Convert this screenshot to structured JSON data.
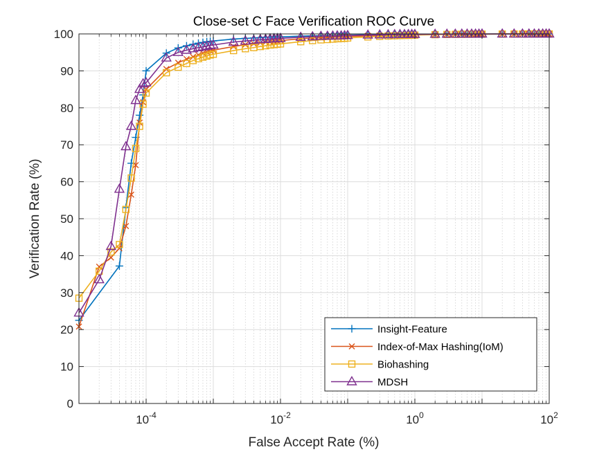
{
  "chart_data": {
    "type": "line",
    "title": "Close-set C Face Verification ROC Curve",
    "xlabel": "False Accept Rate (%)",
    "ylabel": "Verification Rate (%)",
    "xscale": "log",
    "xlim": [
      1e-05,
      100
    ],
    "ylim": [
      0,
      100
    ],
    "grid": true,
    "minor_grid": true,
    "legend_position": "bottom-right",
    "x_ticks": [
      {
        "value": 0.0001,
        "base": "10",
        "exp": "-4"
      },
      {
        "value": 0.01,
        "base": "10",
        "exp": "-2"
      },
      {
        "value": 1,
        "base": "10",
        "exp": "0"
      },
      {
        "value": 100,
        "base": "10",
        "exp": "2"
      }
    ],
    "y_ticks": [
      0,
      10,
      20,
      30,
      40,
      50,
      60,
      70,
      80,
      90,
      100
    ],
    "series": [
      {
        "name": "Insight-Feature",
        "color": "#0072BD",
        "marker": "plus",
        "points": [
          [
            1e-05,
            22.5
          ],
          [
            4e-05,
            37.2
          ],
          [
            5e-05,
            53
          ],
          [
            6e-05,
            65
          ],
          [
            7e-05,
            72
          ],
          [
            8e-05,
            78
          ],
          [
            9e-05,
            83.5
          ],
          [
            0.0001,
            90
          ],
          [
            0.0002,
            94.8
          ],
          [
            0.0003,
            96.2
          ],
          [
            0.0004,
            96.8
          ],
          [
            0.0005,
            97.2
          ],
          [
            0.0006,
            97.5
          ],
          [
            0.0007,
            97.7
          ],
          [
            0.0008,
            97.9
          ],
          [
            0.0009,
            98
          ],
          [
            0.001,
            98.1
          ],
          [
            0.002,
            98.6
          ],
          [
            0.003,
            98.8
          ],
          [
            0.004,
            98.9
          ],
          [
            0.005,
            99
          ],
          [
            0.006,
            99.1
          ],
          [
            0.007,
            99.1
          ],
          [
            0.008,
            99.2
          ],
          [
            0.009,
            99.2
          ],
          [
            0.01,
            99.2
          ],
          [
            0.02,
            99.4
          ],
          [
            0.03,
            99.5
          ],
          [
            0.04,
            99.5
          ],
          [
            0.05,
            99.6
          ],
          [
            0.06,
            99.6
          ],
          [
            0.07,
            99.6
          ],
          [
            0.08,
            99.7
          ],
          [
            0.09,
            99.7
          ],
          [
            0.1,
            99.7
          ],
          [
            0.2,
            99.8
          ],
          [
            0.3,
            99.8
          ],
          [
            0.4,
            99.8
          ],
          [
            0.5,
            99.8
          ],
          [
            0.6,
            99.85
          ],
          [
            0.7,
            99.85
          ],
          [
            0.8,
            99.85
          ],
          [
            0.9,
            99.9
          ],
          [
            1,
            99.9
          ],
          [
            2,
            99.9
          ],
          [
            3,
            99.9
          ],
          [
            4,
            99.95
          ],
          [
            5,
            99.95
          ],
          [
            6,
            99.95
          ],
          [
            7,
            99.95
          ],
          [
            8,
            99.95
          ],
          [
            9,
            99.95
          ],
          [
            10,
            99.95
          ],
          [
            20,
            100
          ],
          [
            30,
            100
          ],
          [
            40,
            100
          ],
          [
            50,
            100
          ],
          [
            60,
            100
          ],
          [
            70,
            100
          ],
          [
            80,
            100
          ],
          [
            90,
            100
          ],
          [
            100,
            100
          ]
        ]
      },
      {
        "name": "Index-of-Max Hashing(IoM)",
        "color": "#D95319",
        "marker": "x",
        "points": [
          [
            1e-05,
            20.8
          ],
          [
            2e-05,
            37
          ],
          [
            3e-05,
            39.5
          ],
          [
            4e-05,
            42
          ],
          [
            5e-05,
            48
          ],
          [
            6e-05,
            56.5
          ],
          [
            7e-05,
            64.5
          ],
          [
            8e-05,
            76
          ],
          [
            9e-05,
            81.5
          ],
          [
            0.0001,
            85
          ],
          [
            0.0002,
            90.5
          ],
          [
            0.0003,
            92.2
          ],
          [
            0.0004,
            93.2
          ],
          [
            0.0005,
            93.8
          ],
          [
            0.0006,
            94.3
          ],
          [
            0.0007,
            94.8
          ],
          [
            0.0008,
            95.1
          ],
          [
            0.0009,
            95.4
          ],
          [
            0.001,
            95.6
          ],
          [
            0.002,
            96.6
          ],
          [
            0.003,
            97.1
          ],
          [
            0.004,
            97.4
          ],
          [
            0.005,
            97.6
          ],
          [
            0.006,
            97.8
          ],
          [
            0.007,
            97.9
          ],
          [
            0.008,
            98
          ],
          [
            0.009,
            98.1
          ],
          [
            0.01,
            98.2
          ],
          [
            0.02,
            98.7
          ],
          [
            0.03,
            98.9
          ],
          [
            0.04,
            99
          ],
          [
            0.05,
            99.1
          ],
          [
            0.06,
            99.15
          ],
          [
            0.07,
            99.2
          ],
          [
            0.08,
            99.25
          ],
          [
            0.09,
            99.3
          ],
          [
            0.1,
            99.3
          ],
          [
            0.2,
            99.5
          ],
          [
            0.3,
            99.55
          ],
          [
            0.4,
            99.6
          ],
          [
            0.5,
            99.65
          ],
          [
            0.6,
            99.7
          ],
          [
            0.7,
            99.7
          ],
          [
            0.8,
            99.72
          ],
          [
            0.9,
            99.75
          ],
          [
            1,
            99.75
          ],
          [
            2,
            99.85
          ],
          [
            3,
            99.88
          ],
          [
            4,
            99.9
          ],
          [
            5,
            99.9
          ],
          [
            6,
            99.92
          ],
          [
            7,
            99.92
          ],
          [
            8,
            99.93
          ],
          [
            9,
            99.93
          ],
          [
            10,
            99.94
          ],
          [
            20,
            99.97
          ],
          [
            30,
            99.98
          ],
          [
            40,
            99.98
          ],
          [
            50,
            99.99
          ],
          [
            60,
            99.99
          ],
          [
            70,
            99.99
          ],
          [
            80,
            100
          ],
          [
            90,
            100
          ],
          [
            100,
            100
          ]
        ]
      },
      {
        "name": "Biohashing",
        "color": "#EDB120",
        "marker": "square",
        "points": [
          [
            1e-05,
            28.5
          ],
          [
            2e-05,
            35.8
          ],
          [
            3e-05,
            41
          ],
          [
            4e-05,
            43
          ],
          [
            5e-05,
            52.5
          ],
          [
            6e-05,
            61
          ],
          [
            7e-05,
            69
          ],
          [
            8e-05,
            75
          ],
          [
            9e-05,
            81
          ],
          [
            0.0001,
            84
          ],
          [
            0.0002,
            89.5
          ],
          [
            0.0003,
            91
          ],
          [
            0.0004,
            92
          ],
          [
            0.0005,
            92.8
          ],
          [
            0.0006,
            93.3
          ],
          [
            0.0007,
            93.7
          ],
          [
            0.0008,
            94
          ],
          [
            0.0009,
            94.3
          ],
          [
            0.001,
            94.5
          ],
          [
            0.002,
            95.5
          ],
          [
            0.003,
            96
          ],
          [
            0.004,
            96.3
          ],
          [
            0.005,
            96.6
          ],
          [
            0.006,
            96.8
          ],
          [
            0.007,
            97
          ],
          [
            0.008,
            97.1
          ],
          [
            0.009,
            97.2
          ],
          [
            0.01,
            97.3
          ],
          [
            0.02,
            97.9
          ],
          [
            0.03,
            98.2
          ],
          [
            0.04,
            98.4
          ],
          [
            0.05,
            98.5
          ],
          [
            0.06,
            98.6
          ],
          [
            0.07,
            98.7
          ],
          [
            0.08,
            98.75
          ],
          [
            0.09,
            98.8
          ],
          [
            0.1,
            98.9
          ],
          [
            0.2,
            99.2
          ],
          [
            0.3,
            99.35
          ],
          [
            0.4,
            99.45
          ],
          [
            0.5,
            99.5
          ],
          [
            0.6,
            99.55
          ],
          [
            0.7,
            99.6
          ],
          [
            0.8,
            99.62
          ],
          [
            0.9,
            99.65
          ],
          [
            1,
            99.68
          ],
          [
            2,
            99.8
          ],
          [
            3,
            99.85
          ],
          [
            4,
            99.88
          ],
          [
            5,
            99.9
          ],
          [
            6,
            99.91
          ],
          [
            7,
            99.92
          ],
          [
            8,
            99.93
          ],
          [
            9,
            99.93
          ],
          [
            10,
            99.94
          ],
          [
            20,
            99.97
          ],
          [
            30,
            99.98
          ],
          [
            40,
            99.98
          ],
          [
            50,
            99.99
          ],
          [
            60,
            99.99
          ],
          [
            70,
            99.99
          ],
          [
            80,
            100
          ],
          [
            90,
            100
          ],
          [
            100,
            100
          ]
        ]
      },
      {
        "name": "MDSH",
        "color": "#7E2F8E",
        "marker": "triangle",
        "points": [
          [
            1e-05,
            24.5
          ],
          [
            2e-05,
            33.5
          ],
          [
            3e-05,
            42.5
          ],
          [
            4e-05,
            58
          ],
          [
            5e-05,
            69.5
          ],
          [
            6e-05,
            75
          ],
          [
            7e-05,
            82
          ],
          [
            8e-05,
            85
          ],
          [
            9e-05,
            86.5
          ],
          [
            0.0001,
            86.8
          ],
          [
            0.0002,
            93.5
          ],
          [
            0.0003,
            95
          ],
          [
            0.0004,
            95.6
          ],
          [
            0.0005,
            96
          ],
          [
            0.0006,
            96.3
          ],
          [
            0.0007,
            96.5
          ],
          [
            0.0008,
            96.7
          ],
          [
            0.0009,
            96.9
          ],
          [
            0.001,
            97
          ],
          [
            0.002,
            97.8
          ],
          [
            0.003,
            98.1
          ],
          [
            0.004,
            98.3
          ],
          [
            0.005,
            98.45
          ],
          [
            0.006,
            98.55
          ],
          [
            0.007,
            98.65
          ],
          [
            0.008,
            98.7
          ],
          [
            0.009,
            98.75
          ],
          [
            0.01,
            98.8
          ],
          [
            0.02,
            99.1
          ],
          [
            0.03,
            99.25
          ],
          [
            0.04,
            99.35
          ],
          [
            0.05,
            99.4
          ],
          [
            0.06,
            99.45
          ],
          [
            0.07,
            99.5
          ],
          [
            0.08,
            99.5
          ],
          [
            0.09,
            99.55
          ],
          [
            0.1,
            99.6
          ],
          [
            0.2,
            99.7
          ],
          [
            0.3,
            99.75
          ],
          [
            0.4,
            99.8
          ],
          [
            0.5,
            99.82
          ],
          [
            0.6,
            99.84
          ],
          [
            0.7,
            99.85
          ],
          [
            0.8,
            99.86
          ],
          [
            0.9,
            99.87
          ],
          [
            1,
            99.88
          ],
          [
            2,
            99.92
          ],
          [
            3,
            99.94
          ],
          [
            4,
            99.95
          ],
          [
            5,
            99.96
          ],
          [
            6,
            99.96
          ],
          [
            7,
            99.97
          ],
          [
            8,
            99.97
          ],
          [
            9,
            99.97
          ],
          [
            10,
            99.98
          ],
          [
            20,
            99.99
          ],
          [
            30,
            99.99
          ],
          [
            40,
            100
          ],
          [
            50,
            100
          ],
          [
            60,
            100
          ],
          [
            70,
            100
          ],
          [
            80,
            100
          ],
          [
            90,
            100
          ],
          [
            100,
            100
          ]
        ]
      }
    ]
  }
}
